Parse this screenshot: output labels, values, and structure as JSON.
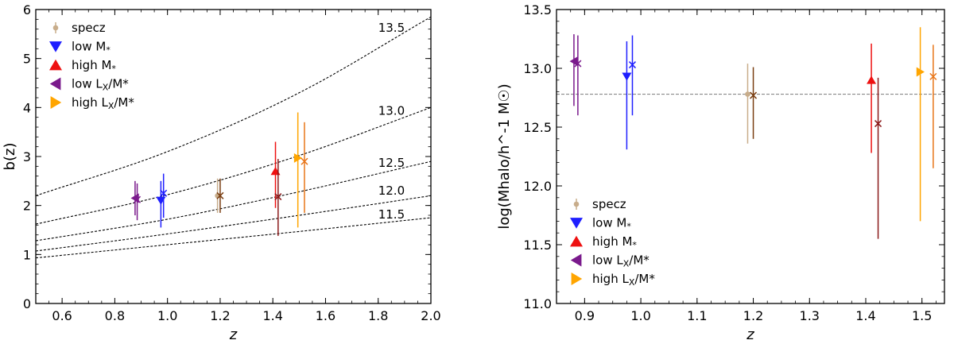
{
  "chart_data": [
    {
      "type": "scatter",
      "xlabel": "z",
      "ylabel": "b(z)",
      "xlim": [
        0.5,
        2.0
      ],
      "ylim": [
        0,
        6
      ],
      "xticks": [
        0.6,
        0.8,
        1.0,
        1.2,
        1.4,
        1.6,
        1.8,
        2.0
      ],
      "xtick_labels": [
        "0.6",
        "0.8",
        "1.0",
        "1.2",
        "1.4",
        "1.6",
        "1.8",
        "2.0"
      ],
      "yticks": [
        0,
        1,
        2,
        3,
        4,
        5,
        6
      ],
      "ytick_labels": [
        "0",
        "1",
        "2",
        "3",
        "4",
        "5",
        "6"
      ],
      "legend_position": "top-left",
      "legend": [
        {
          "name": "specz",
          "label_prefix": "specz",
          "label_sub": "",
          "label_suffix": "",
          "marker": "circle",
          "color": "#c8ad8b"
        },
        {
          "name": "low M*",
          "label_prefix": "low M",
          "label_sub": "*",
          "label_suffix": "",
          "marker": "triangle-down",
          "color": "#1f1fff"
        },
        {
          "name": "high M*",
          "label_prefix": "high M",
          "label_sub": "*",
          "label_suffix": "",
          "marker": "triangle-up",
          "color": "#ee1111"
        },
        {
          "name": "low LX/M*",
          "label_prefix": "low L",
          "label_sub": "X",
          "label_suffix": "/M*",
          "marker": "triangle-left",
          "color": "#7a1a8c"
        },
        {
          "name": "high LX/M*",
          "label_prefix": "high L",
          "label_sub": "X",
          "label_suffix": "/M*",
          "marker": "triangle-right",
          "color": "#ffa500"
        }
      ],
      "halo_mass_curves": [
        {
          "label": "13.5",
          "values_at_x": [
            [
              0.5,
              2.2
            ],
            [
              1.0,
              3.1
            ],
            [
              1.5,
              4.3
            ],
            [
              2.0,
              5.85
            ]
          ]
        },
        {
          "label": "13.0",
          "values_at_x": [
            [
              0.5,
              1.62
            ],
            [
              1.0,
              2.22
            ],
            [
              1.5,
              3.02
            ],
            [
              2.0,
              4.0
            ]
          ]
        },
        {
          "label": "12.5",
          "values_at_x": [
            [
              0.5,
              1.28
            ],
            [
              1.0,
              1.72
            ],
            [
              1.5,
              2.28
            ],
            [
              2.0,
              2.9
            ]
          ]
        },
        {
          "label": "12.0",
          "values_at_x": [
            [
              0.5,
              1.07
            ],
            [
              1.0,
              1.42
            ],
            [
              1.5,
              1.8
            ],
            [
              2.0,
              2.2
            ]
          ]
        },
        {
          "label": "11.5",
          "values_at_x": [
            [
              0.5,
              0.93
            ],
            [
              1.0,
              1.2
            ],
            [
              1.5,
              1.47
            ],
            [
              2.0,
              1.75
            ]
          ]
        }
      ],
      "series": [
        {
          "name": "specz",
          "marker": "circle",
          "color": "#c8ad8b",
          "points": [
            {
              "x": 1.19,
              "y": 2.2,
              "lo": 1.85,
              "hi": 2.55
            }
          ],
          "cross": {
            "x": 1.2,
            "y": 2.2,
            "lo": 1.85,
            "hi": 2.55,
            "color": "#7a3e12"
          }
        },
        {
          "name": "low M*",
          "marker": "triangle-down",
          "color": "#1f1fff",
          "points": [
            {
              "x": 0.975,
              "y": 2.1,
              "lo": 1.55,
              "hi": 2.5
            }
          ],
          "cross": {
            "x": 0.985,
            "y": 2.25,
            "lo": 1.75,
            "hi": 2.65,
            "color": "#1f1fff"
          }
        },
        {
          "name": "high M*",
          "marker": "triangle-up",
          "color": "#ee1111",
          "points": [
            {
              "x": 1.41,
              "y": 2.7,
              "lo": 1.95,
              "hi": 3.3
            }
          ],
          "cross": {
            "x": 1.42,
            "y": 2.18,
            "lo": 1.38,
            "hi": 2.95,
            "color": "#8b1a1a"
          }
        },
        {
          "name": "low LX/M*",
          "marker": "triangle-left",
          "color": "#7a1a8c",
          "points": [
            {
              "x": 0.877,
              "y": 2.15,
              "lo": 1.8,
              "hi": 2.5
            }
          ],
          "cross": {
            "x": 0.885,
            "y": 2.12,
            "lo": 1.7,
            "hi": 2.45,
            "color": "#7a1a8c"
          }
        },
        {
          "name": "high LX/M*",
          "marker": "triangle-right",
          "color": "#ffa500",
          "points": [
            {
              "x": 1.495,
              "y": 2.97,
              "lo": 1.55,
              "hi": 3.9
            }
          ],
          "cross": {
            "x": 1.52,
            "y": 2.9,
            "lo": 1.85,
            "hi": 3.7,
            "color": "#e8761a"
          }
        }
      ]
    },
    {
      "type": "scatter",
      "xlabel": "z",
      "ylabel": "log(Mhalo/h^-1 M☉)",
      "xlim": [
        0.85,
        1.54
      ],
      "ylim": [
        11.0,
        13.5
      ],
      "xticks": [
        0.9,
        1.0,
        1.1,
        1.2,
        1.3,
        1.4,
        1.5
      ],
      "xtick_labels": [
        "0.9",
        "1.0",
        "1.1",
        "1.2",
        "1.3",
        "1.4",
        "1.5"
      ],
      "yticks": [
        11.0,
        11.5,
        12.0,
        12.5,
        13.0,
        13.5
      ],
      "ytick_labels": [
        "11.0",
        "11.5",
        "12.0",
        "12.5",
        "13.0",
        "13.5"
      ],
      "legend_position": "bottom-left",
      "reference_line": {
        "y": 12.78,
        "style": "dashed",
        "color": "#888888"
      },
      "legend": [
        {
          "name": "specz",
          "label_prefix": "specz",
          "label_sub": "",
          "label_suffix": "",
          "marker": "circle",
          "color": "#c8ad8b"
        },
        {
          "name": "low M*",
          "label_prefix": "low M",
          "label_sub": "*",
          "label_suffix": "",
          "marker": "triangle-down",
          "color": "#1f1fff"
        },
        {
          "name": "high M*",
          "label_prefix": "high M",
          "label_sub": "*",
          "label_suffix": "",
          "marker": "triangle-up",
          "color": "#ee1111"
        },
        {
          "name": "low LX/M*",
          "label_prefix": "low L",
          "label_sub": "X",
          "label_suffix": "/M*",
          "marker": "triangle-left",
          "color": "#7a1a8c"
        },
        {
          "name": "high LX/M*",
          "label_prefix": "high L",
          "label_sub": "X",
          "label_suffix": "/M*",
          "marker": "triangle-right",
          "color": "#ffa500"
        }
      ],
      "series": [
        {
          "name": "specz",
          "marker": "circle",
          "color": "#c8ad8b",
          "points": [
            {
              "x": 1.19,
              "y": 12.78,
              "lo": 12.36,
              "hi": 13.04
            }
          ],
          "cross": {
            "x": 1.2,
            "y": 12.77,
            "lo": 12.4,
            "hi": 13.01,
            "color": "#7a3e12"
          }
        },
        {
          "name": "low M*",
          "marker": "triangle-down",
          "color": "#1f1fff",
          "points": [
            {
              "x": 0.975,
              "y": 12.93,
              "lo": 12.31,
              "hi": 13.23
            }
          ],
          "cross": {
            "x": 0.985,
            "y": 13.03,
            "lo": 12.6,
            "hi": 13.28,
            "color": "#1f1fff"
          }
        },
        {
          "name": "high M*",
          "marker": "triangle-up",
          "color": "#ee1111",
          "points": [
            {
              "x": 1.41,
              "y": 12.9,
              "lo": 12.28,
              "hi": 13.21
            }
          ],
          "cross": {
            "x": 1.422,
            "y": 12.53,
            "lo": 11.55,
            "hi": 12.92,
            "color": "#8b1a1a"
          }
        },
        {
          "name": "low LX/M*",
          "marker": "triangle-left",
          "color": "#7a1a8c",
          "points": [
            {
              "x": 0.881,
              "y": 13.06,
              "lo": 12.68,
              "hi": 13.29
            }
          ],
          "cross": {
            "x": 0.888,
            "y": 13.04,
            "lo": 12.6,
            "hi": 13.28,
            "color": "#7a1a8c"
          }
        },
        {
          "name": "high LX/M*",
          "marker": "triangle-right",
          "color": "#ffa500",
          "points": [
            {
              "x": 1.497,
              "y": 12.97,
              "lo": 11.7,
              "hi": 13.35
            }
          ],
          "cross": {
            "x": 1.52,
            "y": 12.93,
            "lo": 12.15,
            "hi": 13.2,
            "color": "#e8761a"
          }
        }
      ]
    }
  ]
}
